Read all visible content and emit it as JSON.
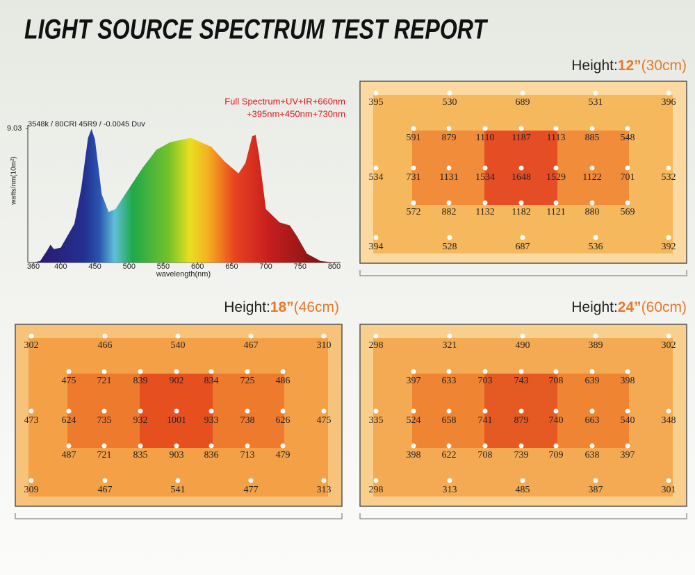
{
  "title": "LIGHT SOURCE SPECTRUM TEST REPORT",
  "chart_data": {
    "type": "area",
    "subtitle": "3548k / 80CRI 45R9 / -0.0045 Duv",
    "annotation": [
      "Full Spectrum+UV+IR+660nm",
      "+395nm+450nm+730nm"
    ],
    "x_label": "wavelength(nm)",
    "y_label": "watts/nm(10m²)",
    "x": [
      360,
      370,
      380,
      385,
      390,
      400,
      410,
      420,
      430,
      440,
      445,
      450,
      460,
      470,
      480,
      500,
      520,
      540,
      560,
      590,
      620,
      640,
      660,
      670,
      680,
      685,
      690,
      700,
      720,
      735,
      745,
      760,
      780,
      800
    ],
    "values": [
      0,
      0.1,
      0.8,
      1.2,
      0.9,
      1.0,
      1.8,
      2.6,
      5.0,
      8.4,
      9.0,
      8.3,
      4.6,
      3.4,
      3.6,
      5.0,
      6.4,
      7.6,
      8.1,
      8.4,
      7.8,
      6.8,
      6.0,
      6.7,
      8.5,
      8.6,
      7.2,
      3.6,
      2.7,
      2.5,
      1.8,
      0.6,
      0.1,
      0
    ],
    "xlim": [
      360,
      800
    ],
    "ylim": [
      0,
      9.03
    ],
    "xticks": [
      360,
      400,
      450,
      500,
      550,
      600,
      650,
      700,
      750,
      800
    ],
    "yticks": [
      9.03
    ]
  },
  "maps": [
    {
      "heading": [
        "Height:",
        "12”",
        "(30cm)"
      ],
      "rows": [
        [
          395,
          530,
          689,
          531,
          396
        ],
        [
          591,
          879,
          1110,
          1187,
          1113,
          885,
          548
        ],
        [
          534,
          731,
          1131,
          1534,
          1648,
          1529,
          1122,
          701,
          532
        ],
        [
          572,
          882,
          1132,
          1182,
          1121,
          880,
          569
        ],
        [
          394,
          528,
          687,
          536,
          392
        ]
      ]
    },
    {
      "heading": [
        "Height:",
        "18”",
        "(46cm)"
      ],
      "rows": [
        [
          302,
          466,
          540,
          467,
          310
        ],
        [
          475,
          721,
          839,
          902,
          834,
          725,
          486
        ],
        [
          473,
          624,
          735,
          932,
          1001,
          933,
          738,
          626,
          475
        ],
        [
          487,
          721,
          835,
          903,
          836,
          713,
          479
        ],
        [
          309,
          467,
          541,
          477,
          313
        ]
      ]
    },
    {
      "heading": [
        "Height:",
        "24”",
        "(60cm)"
      ],
      "rows": [
        [
          298,
          321,
          490,
          389,
          302
        ],
        [
          397,
          633,
          703,
          743,
          708,
          639,
          398
        ],
        [
          335,
          524,
          658,
          741,
          879,
          740,
          663,
          540,
          348
        ],
        [
          398,
          622,
          708,
          739,
          709,
          638,
          397
        ],
        [
          298,
          313,
          485,
          387,
          301
        ]
      ]
    }
  ]
}
